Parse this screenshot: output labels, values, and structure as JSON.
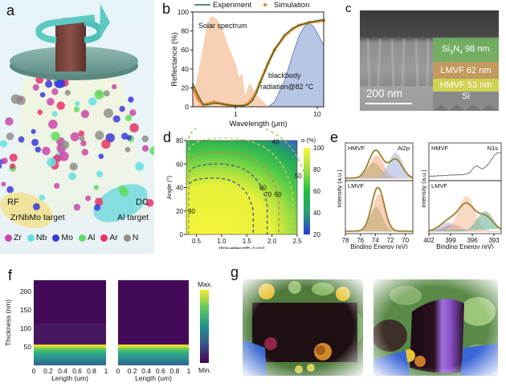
{
  "figure": {
    "panels": {
      "a": {
        "letter": "a",
        "rf_label": "RF",
        "dc_label": "DC",
        "target1": "ZrNbMo target",
        "target2": "Al target",
        "legend": [
          {
            "label": "Zr",
            "color": "#c946a8"
          },
          {
            "label": "Nb",
            "color": "#63e0e0"
          },
          {
            "label": "Mo",
            "color": "#3a3ad8"
          },
          {
            "label": "Al",
            "color": "#5fdc5f"
          },
          {
            "label": "Ar",
            "color": "#e8336a"
          },
          {
            "label": "N",
            "color": "#8e8e86"
          }
        ]
      },
      "b": {
        "letter": "b"
      },
      "c": {
        "letter": "c",
        "layers": [
          {
            "label": "Si3N4 98 nm",
            "html_main": "Si",
            "sub1": "3",
            "mid": "N",
            "sub2": "4",
            "rest": " 98 nm",
            "color": "#6db35c"
          },
          {
            "label": "LMVF 62 nm",
            "color": "#c89a5a"
          },
          {
            "label": "HMVF 53 nm",
            "color": "#d6d84a"
          },
          {
            "label": "Si",
            "color": "#8c8c8c"
          }
        ],
        "scale_bar": "200 nm"
      },
      "d": {
        "letter": "d"
      },
      "e": {
        "letter": "e"
      },
      "f": {
        "letter": "f"
      },
      "g": {
        "letter": "g"
      }
    }
  },
  "chart_data": [
    {
      "id": "b",
      "type": "line",
      "title": "",
      "xlabel": "Wavelength (μm)",
      "ylabel": "Reflectance (%)",
      "xscale": "log",
      "xlim": [
        0.3,
        12
      ],
      "ylim": [
        0,
        100
      ],
      "xticks": [
        1,
        10
      ],
      "yticks": [
        0,
        20,
        40,
        60,
        80,
        100
      ],
      "legend": [
        {
          "name": "Experiment",
          "color": "#1f6b3a",
          "style": "line"
        },
        {
          "name": "Simulation",
          "color": "#f07f1f",
          "style": "dot"
        }
      ],
      "legend_position": "top",
      "annotations": [
        "Solar spectrum",
        "blackbody",
        "radiation@82 °C"
      ],
      "series": [
        {
          "name": "Experiment",
          "x": [
            0.3,
            0.35,
            0.4,
            0.45,
            0.5,
            0.6,
            0.7,
            0.8,
            1.0,
            1.2,
            1.4,
            1.6,
            1.8,
            2.0,
            2.5,
            3,
            4,
            5,
            6,
            8,
            10,
            12
          ],
          "y": [
            25,
            12,
            3,
            2,
            3,
            4,
            3,
            2,
            1,
            1,
            2,
            6,
            14,
            25,
            45,
            60,
            76,
            83,
            86,
            89,
            91,
            92
          ]
        },
        {
          "name": "Simulation",
          "x": [
            0.3,
            0.35,
            0.4,
            0.45,
            0.5,
            0.55,
            0.6,
            0.7,
            0.8,
            1.0,
            1.2,
            1.4,
            1.6,
            1.8,
            2.0,
            2.5,
            3,
            4,
            5,
            6,
            8,
            10,
            12
          ],
          "y": [
            20,
            8,
            2,
            3,
            4,
            5,
            4,
            3,
            2,
            1,
            1,
            3,
            8,
            16,
            26,
            46,
            60,
            75,
            82,
            86,
            89,
            90,
            91
          ]
        },
        {
          "name": "Solar spectrum",
          "x": [
            0.3,
            0.4,
            0.45,
            0.5,
            0.6,
            0.7,
            0.8,
            0.9,
            1.0,
            1.1,
            1.2,
            1.3,
            1.5,
            1.7,
            2.0,
            2.2,
            2.5
          ],
          "y": [
            5,
            60,
            85,
            95,
            92,
            80,
            65,
            55,
            45,
            30,
            35,
            10,
            25,
            15,
            8,
            5,
            0
          ]
        },
        {
          "name": "blackbody radiation@82 °C",
          "x": [
            2.5,
            3,
            4,
            5,
            6,
            7,
            8,
            9,
            10,
            12
          ],
          "y": [
            0,
            5,
            28,
            55,
            75,
            85,
            88,
            85,
            78,
            65
          ]
        }
      ]
    },
    {
      "id": "d",
      "type": "heatmap",
      "xlabel": "Wavelength (μm)",
      "ylabel": "Angle (°)",
      "xlim": [
        0.3,
        2.5
      ],
      "ylim": [
        0,
        80
      ],
      "xticks": [
        0.5,
        1.0,
        1.5,
        2.0,
        2.5
      ],
      "yticks": [
        0,
        20,
        40,
        60,
        80
      ],
      "colorbar": {
        "label": "α (%)",
        "min": 20,
        "max": 100,
        "ticks": [
          20,
          40,
          60,
          80,
          100
        ]
      },
      "contour_labels": [
        90,
        80,
        70,
        60,
        50,
        40
      ]
    },
    {
      "id": "e-left",
      "type": "line",
      "title": "Al2p",
      "xlabel": "Binding Energy (eV)",
      "ylabel": "Intensity (a.u.)",
      "xlim": [
        78,
        69
      ],
      "xticks": [
        78,
        76,
        74,
        72,
        70
      ],
      "subplots": [
        {
          "label": "HMVF",
          "peaks": [
            {
              "center": 74.2,
              "height": 0.55,
              "color": "#7aa860"
            },
            {
              "center": 73.8,
              "height": 0.8,
              "color": "#f4b088"
            },
            {
              "center": 71.3,
              "height": 0.9,
              "color": "#a8b8e0"
            }
          ]
        },
        {
          "label": "LMVF",
          "peaks": [
            {
              "center": 73.9,
              "height": 0.55,
              "color": "#7aa860"
            },
            {
              "center": 73.5,
              "height": 0.85,
              "color": "#f4b088"
            }
          ]
        }
      ]
    },
    {
      "id": "e-right",
      "type": "line",
      "title": "N1s",
      "xlabel": "Binding Energy (eV)",
      "ylabel": "Intensity (a.u.)",
      "xlim": [
        402,
        392
      ],
      "xticks": [
        402,
        399,
        396,
        393
      ],
      "subplots": [
        {
          "label": "HMVF",
          "peaks": []
        },
        {
          "label": "LMVF",
          "peaks": [
            {
              "center": 399.5,
              "height": 0.2,
              "color": "#b8b8e0"
            },
            {
              "center": 398.7,
              "height": 0.15,
              "color": "#b09898"
            },
            {
              "center": 396.8,
              "height": 0.8,
              "color": "#f4c0a0"
            },
            {
              "center": 394.2,
              "height": 0.45,
              "color": "#6ab8a0"
            }
          ]
        }
      ]
    },
    {
      "id": "f",
      "type": "heatmap",
      "xlabel": "Length (um)",
      "ylabel": "Thickness (nm)",
      "xticks": [
        "0",
        "0.2",
        "0.4",
        "0.6",
        "0.8",
        "1"
      ],
      "yticks": [
        50,
        100,
        150,
        200
      ],
      "ylim": [
        0,
        230
      ],
      "colorbar": {
        "max_label": "Max.",
        "min_label": "Min."
      },
      "count": 2
    }
  ]
}
